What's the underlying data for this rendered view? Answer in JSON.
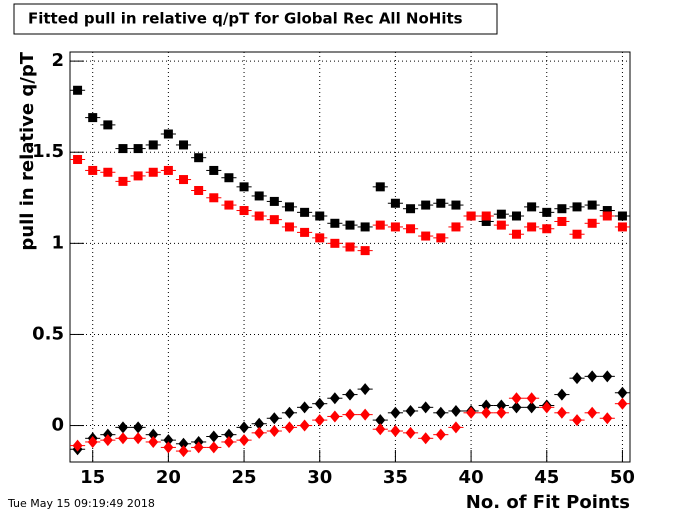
{
  "chart_data": {
    "type": "scatter",
    "title": "Fitted pull in relative q/pT for Global Rec All NoHits",
    "x_label": "No. of Fit Points",
    "y_label": "pull in relative q/pT",
    "timestamp": "Tue May 15 09:19:49 2018",
    "x": [
      14,
      15,
      16,
      17,
      18,
      19,
      20,
      21,
      22,
      23,
      24,
      25,
      26,
      27,
      28,
      29,
      30,
      31,
      32,
      33,
      34,
      35,
      36,
      37,
      38,
      39,
      40,
      41,
      42,
      43,
      44,
      45,
      46,
      47,
      48,
      49,
      50
    ],
    "series": [
      {
        "color": "#000000",
        "marker": "square",
        "values": [
          1.84,
          1.69,
          1.65,
          1.52,
          1.52,
          1.54,
          1.6,
          1.54,
          1.47,
          1.4,
          1.36,
          1.31,
          1.26,
          1.23,
          1.2,
          1.17,
          1.15,
          1.11,
          1.1,
          1.09,
          1.31,
          1.22,
          1.19,
          1.21,
          1.22,
          1.21,
          1.15,
          1.12,
          1.16,
          1.15,
          1.2,
          1.17,
          1.19,
          1.2,
          1.21,
          1.18,
          1.15
        ]
      },
      {
        "color": "#ff0000",
        "marker": "square",
        "values": [
          1.46,
          1.4,
          1.39,
          1.34,
          1.37,
          1.39,
          1.4,
          1.35,
          1.29,
          1.25,
          1.21,
          1.18,
          1.15,
          1.13,
          1.09,
          1.06,
          1.03,
          1.0,
          0.98,
          0.96,
          1.1,
          1.09,
          1.08,
          1.04,
          1.03,
          1.09,
          1.15,
          1.15,
          1.1,
          1.05,
          1.09,
          1.08,
          1.12,
          1.05,
          1.11,
          1.15,
          1.09
        ]
      },
      {
        "color": "#000000",
        "marker": "diamond",
        "values": [
          -0.13,
          -0.07,
          -0.05,
          -0.01,
          -0.01,
          -0.05,
          -0.08,
          -0.1,
          -0.09,
          -0.06,
          -0.05,
          -0.01,
          0.01,
          0.04,
          0.07,
          0.1,
          0.12,
          0.15,
          0.17,
          0.2,
          0.03,
          0.07,
          0.08,
          0.1,
          0.07,
          0.08,
          0.08,
          0.11,
          0.11,
          0.1,
          0.1,
          0.11,
          0.17,
          0.26,
          0.27,
          0.27,
          0.18
        ]
      },
      {
        "color": "#ff0000",
        "marker": "diamond",
        "values": [
          -0.11,
          -0.09,
          -0.08,
          -0.07,
          -0.07,
          -0.09,
          -0.12,
          -0.14,
          -0.12,
          -0.12,
          -0.09,
          -0.08,
          -0.04,
          -0.03,
          -0.01,
          0.0,
          0.03,
          0.05,
          0.06,
          0.06,
          -0.02,
          -0.03,
          -0.04,
          -0.07,
          -0.05,
          -0.01,
          0.07,
          0.07,
          0.07,
          0.15,
          0.15,
          0.1,
          0.07,
          0.03,
          0.07,
          0.04,
          0.12
        ]
      }
    ],
    "xlim": [
      13.5,
      50.5
    ],
    "xticks": [
      15,
      20,
      25,
      30,
      35,
      40,
      45,
      50
    ],
    "ylim": [
      -0.2,
      2.05
    ],
    "yticks": [
      0,
      0.5,
      1,
      1.5,
      2
    ],
    "grid": true
  }
}
